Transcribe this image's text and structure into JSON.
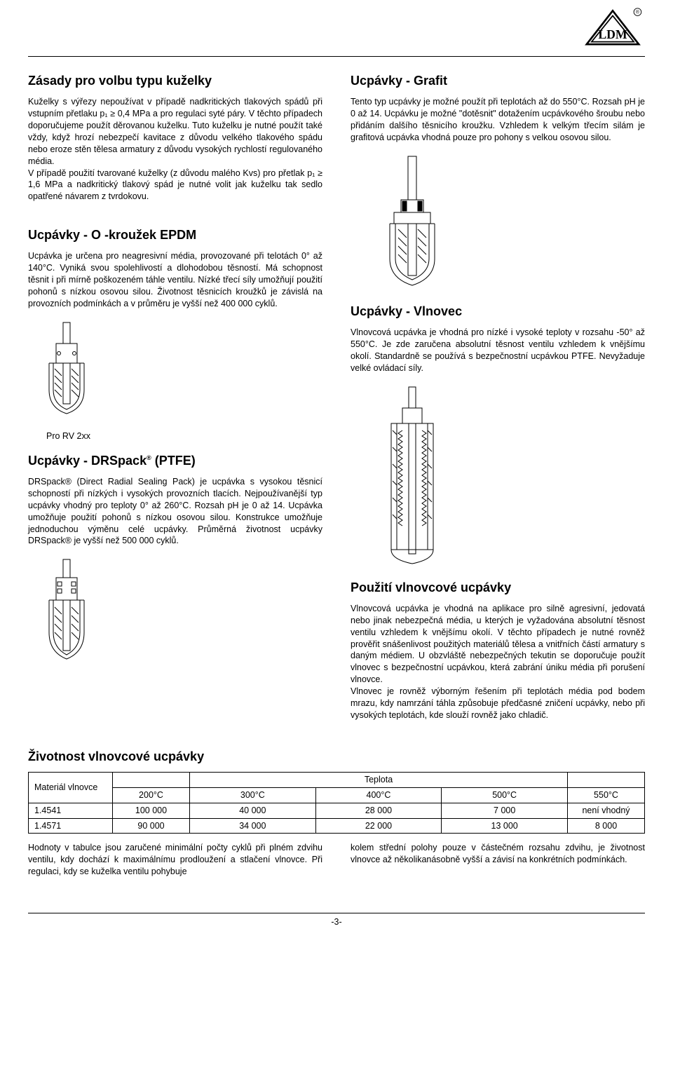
{
  "logo": {
    "text": "LDM",
    "registered": "®"
  },
  "left": {
    "s1": {
      "title": "Zásady pro volbu typu kuželky",
      "body": "Kuželky s výřezy nepoužívat v případě nadkritických tlakových spádů při vstupním přetlaku p₁ ≥ 0,4 MPa a pro regulaci syté páry. V těchto případech doporučujeme použít děrovanou kuželku. Tuto kuželku je nutné použít také vždy, když hrozí nebezpečí kavitace z důvodu velkého tlakového spádu nebo eroze stěn tělesa armatury z důvodu vysokých rychlostí regulovaného média.\nV případě použití tvarované kuželky (z důvodu malého Kvs) pro přetlak p₁ ≥ 1,6 MPa a nadkritický tlakový spád je nutné volit jak kuželku tak sedlo opatřené návarem z tvrdokovu."
    },
    "s2": {
      "title": "Ucpávky - O -kroužek EPDM",
      "body": "Ucpávka je určena pro neagresivní média, provozované při telotách 0° až 140°C. Vyniká svou spolehlivostí a dlohodobou těsností. Má schopnost těsnit i při mírně poškozeném táhle ventilu. Nízké třecí síly umožňují použití pohonů s nízkou osovou silou. Životnost těsnicích kroužků je závislá na provozních podmínkách a v průměru je vyšší než 400 000 cyklů."
    },
    "caption1": "Pro RV 2xx",
    "s3": {
      "title_pre": "Ucpávky - DRSpack",
      "title_post": " (PTFE)",
      "reg": "®",
      "body": "DRSpack® (Direct Radial Sealing Pack) je ucpávka s vysokou těsnicí schopností při nízkých i vysokých provozních tlacích. Nejpoužívanější typ ucpávky vhodný pro teploty 0° až 260°C. Rozsah pH je 0 až 14. Ucpávka umožňuje použití pohonů s nízkou osovou silou. Konstrukce umožňuje jednoduchou výměnu celé ucpávky. Průměrná životnost ucpávky DRSpack® je vyšší než 500 000 cyklů."
    }
  },
  "right": {
    "s1": {
      "title": "Ucpávky - Grafit",
      "body": "Tento typ ucpávky je možné použít při teplotách až do 550°C. Rozsah pH je 0 až 14. Ucpávku je možné \"dotěsnit\" dotažením ucpávkového šroubu nebo přidáním dalšího těsnicího kroužku. Vzhledem k velkým třecím silám je grafitová ucpávka vhodná pouze pro pohony s velkou osovou silou."
    },
    "s2": {
      "title": "Ucpávky - Vlnovec",
      "body": "Vlnovcová ucpávka je vhodná pro nízké i vysoké teploty v rozsahu -50° až 550°C. Je zde zaručena absolutní těsnost ventilu vzhledem k vnějšímu okolí. Standardně se používá s bezpečnostní ucpávkou PTFE. Nevyžaduje velké ovládací síly."
    },
    "s3": {
      "title": "Použití vlnovcové ucpávky",
      "body": "Vlnovcová ucpávka je vhodná na aplikace pro silně agresivní, jedovatá nebo jinak nebezpečná média, u kterých je vyžadována absolutní těsnost ventilu vzhledem k vnějšímu okolí. V těchto případech je nutné rovněž prověřit snášenlivost použitých materiálů tělesa a vnitřních částí armatury s daným médiem. U obzvláště nebezpečných tekutin se doporučuje použít vlnovec s bezpečnostní ucpávkou, která zabrání úniku média při porušení vlnovce.\nVlnovec je rovněž výborným řešením při teplotách média pod bodem mrazu, kdy namrzání táhla způsobuje předčasné zničení ucpávky, nebo při vysokých teplotách, kde slouží rovněž jako chladič."
    }
  },
  "table": {
    "title": "Životnost vlnovcové ucpávky",
    "h_material": "Materiál vlnovce",
    "h_temp": "Teplota",
    "temps": [
      "200°C",
      "300°C",
      "400°C",
      "500°C",
      "550°C"
    ],
    "rows": [
      {
        "mat": "1.4541",
        "vals": [
          "100 000",
          "40 000",
          "28 000",
          "7 000",
          "není vhodný"
        ]
      },
      {
        "mat": "1.4571",
        "vals": [
          "90 000",
          "34 000",
          "22 000",
          "13 000",
          "8 000"
        ]
      }
    ],
    "below_left": "Hodnoty v tabulce jsou zaručené minimální počty cyklů při plném zdvihu ventilu, kdy dochází k maximálnímu prodloužení a stlačení vlnovce. Při regulaci, kdy se kuželka ventilu pohybuje",
    "below_right": "kolem střední polohy pouze v částečném rozsahu zdvihu, je životnost vlnovce až několikanásobně vyšší a závisí na konkrétních podmínkách."
  },
  "footer": {
    "page": "-3-"
  },
  "figstyle": {
    "stroke": "#000000",
    "fill": "#ffffff",
    "hatch": "#000000"
  }
}
